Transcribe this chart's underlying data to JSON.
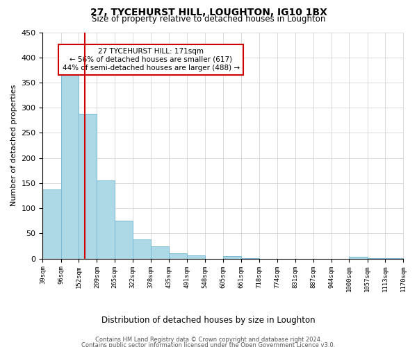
{
  "title": "27, TYCEHURST HILL, LOUGHTON, IG10 1BX",
  "subtitle": "Size of property relative to detached houses in Loughton",
  "xlabel": "Distribution of detached houses by size in Loughton",
  "ylabel": "Number of detached properties",
  "bar_edges": [
    39,
    96,
    152,
    209,
    265,
    322,
    378,
    435,
    491,
    548,
    605,
    661,
    718,
    774,
    831,
    887,
    944,
    1000,
    1057,
    1113,
    1170
  ],
  "bar_heights": [
    138,
    370,
    288,
    155,
    75,
    38,
    25,
    10,
    6,
    0,
    5,
    1,
    0,
    0,
    0,
    0,
    0,
    3,
    1,
    1
  ],
  "bar_color": "#add8e6",
  "bar_edge_color": "#7ab8d4",
  "vline_x": 171,
  "vline_color": "#cc0000",
  "ylim": [
    0,
    450
  ],
  "annotation_text_line1": "27 TYCEHURST HILL: 171sqm",
  "annotation_text_line2": "← 56% of detached houses are smaller (617)",
  "annotation_text_line3": "44% of semi-detached houses are larger (488) →",
  "footnote1": "Contains HM Land Registry data © Crown copyright and database right 2024.",
  "footnote2": "Contains public sector information licensed under the Open Government Licence v3.0.",
  "tick_labels": [
    "39sqm",
    "96sqm",
    "152sqm",
    "209sqm",
    "265sqm",
    "322sqm",
    "378sqm",
    "435sqm",
    "491sqm",
    "548sqm",
    "605sqm",
    "661sqm",
    "718sqm",
    "774sqm",
    "831sqm",
    "887sqm",
    "944sqm",
    "1000sqm",
    "1057sqm",
    "1113sqm",
    "1170sqm"
  ],
  "background_color": "#ffffff",
  "grid_color": "#cccccc"
}
